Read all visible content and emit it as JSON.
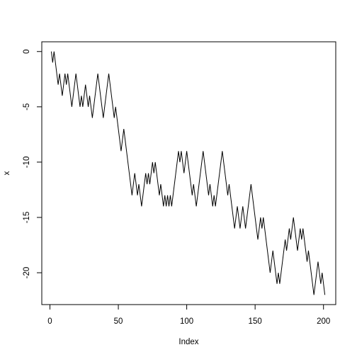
{
  "chart_data": {
    "type": "line",
    "title": "",
    "xlabel": "Index",
    "ylabel": "x",
    "xlim": [
      -5.96,
      208.96
    ],
    "ylim": [
      -22.88,
      0.88
    ],
    "grid": false,
    "x_ticks": [
      0,
      50,
      100,
      150,
      200
    ],
    "x_tick_labels": [
      "0",
      "50",
      "100",
      "150",
      "200"
    ],
    "y_ticks": [
      0,
      -5,
      -10,
      -15,
      -20
    ],
    "y_tick_labels": [
      "0",
      "-5",
      "-10",
      "-15",
      "-20"
    ],
    "line_color": "#000000",
    "x": [
      1,
      2,
      3,
      4,
      5,
      6,
      7,
      8,
      9,
      10,
      11,
      12,
      13,
      14,
      15,
      16,
      17,
      18,
      19,
      20,
      21,
      22,
      23,
      24,
      25,
      26,
      27,
      28,
      29,
      30,
      31,
      32,
      33,
      34,
      35,
      36,
      37,
      38,
      39,
      40,
      41,
      42,
      43,
      44,
      45,
      46,
      47,
      48,
      49,
      50,
      51,
      52,
      53,
      54,
      55,
      56,
      57,
      58,
      59,
      60,
      61,
      62,
      63,
      64,
      65,
      66,
      67,
      68,
      69,
      70,
      71,
      72,
      73,
      74,
      75,
      76,
      77,
      78,
      79,
      80,
      81,
      82,
      83,
      84,
      85,
      86,
      87,
      88,
      89,
      90,
      91,
      92,
      93,
      94,
      95,
      96,
      97,
      98,
      99,
      100,
      101,
      102,
      103,
      104,
      105,
      106,
      107,
      108,
      109,
      110,
      111,
      112,
      113,
      114,
      115,
      116,
      117,
      118,
      119,
      120,
      121,
      122,
      123,
      124,
      125,
      126,
      127,
      128,
      129,
      130,
      131,
      132,
      133,
      134,
      135,
      136,
      137,
      138,
      139,
      140,
      141,
      142,
      143,
      144,
      145,
      146,
      147,
      148,
      149,
      150,
      151,
      152,
      153,
      154,
      155,
      156,
      157,
      158,
      159,
      160,
      161,
      162,
      163,
      164,
      165,
      166,
      167,
      168,
      169,
      170,
      171,
      172,
      173,
      174,
      175,
      176,
      177,
      178,
      179,
      180,
      181,
      182,
      183,
      184,
      185,
      186,
      187,
      188,
      189,
      190,
      191,
      192,
      193,
      194,
      195,
      196,
      197,
      198,
      199,
      200,
      201
    ],
    "values": [
      0,
      -1,
      0,
      -1,
      -2,
      -3,
      -2,
      -3,
      -4,
      -3,
      -2,
      -3,
      -2,
      -3,
      -4,
      -5,
      -4,
      -3,
      -2,
      -3,
      -4,
      -5,
      -4,
      -5,
      -4,
      -3,
      -4,
      -5,
      -4,
      -5,
      -6,
      -5,
      -4,
      -3,
      -2,
      -3,
      -4,
      -5,
      -6,
      -5,
      -4,
      -3,
      -2,
      -3,
      -4,
      -5,
      -6,
      -5,
      -6,
      -7,
      -8,
      -9,
      -8,
      -7,
      -8,
      -9,
      -10,
      -11,
      -12,
      -13,
      -12,
      -11,
      -12,
      -13,
      -12,
      -13,
      -14,
      -13,
      -12,
      -11,
      -12,
      -11,
      -12,
      -11,
      -10,
      -11,
      -10,
      -11,
      -12,
      -13,
      -12,
      -13,
      -14,
      -13,
      -14,
      -13,
      -14,
      -13,
      -14,
      -13,
      -12,
      -11,
      -10,
      -9,
      -10,
      -9,
      -10,
      -11,
      -10,
      -9,
      -10,
      -11,
      -12,
      -13,
      -12,
      -13,
      -14,
      -13,
      -12,
      -11,
      -10,
      -9,
      -10,
      -11,
      -12,
      -13,
      -12,
      -13,
      -14,
      -13,
      -14,
      -13,
      -12,
      -11,
      -10,
      -9,
      -10,
      -11,
      -12,
      -13,
      -12,
      -13,
      -14,
      -15,
      -16,
      -15,
      -14,
      -15,
      -16,
      -15,
      -14,
      -15,
      -16,
      -15,
      -14,
      -13,
      -12,
      -13,
      -14,
      -15,
      -16,
      -17,
      -16,
      -15,
      -16,
      -15,
      -16,
      -17,
      -18,
      -19,
      -20,
      -19,
      -18,
      -19,
      -20,
      -21,
      -20,
      -21,
      -20,
      -19,
      -18,
      -17,
      -18,
      -17,
      -16,
      -17,
      -16,
      -15,
      -16,
      -17,
      -18,
      -17,
      -16,
      -17,
      -16,
      -17,
      -18,
      -19,
      -18,
      -19,
      -20,
      -21,
      -22,
      -21,
      -20,
      -19,
      -20,
      -21,
      -20,
      -21,
      -22
    ]
  }
}
